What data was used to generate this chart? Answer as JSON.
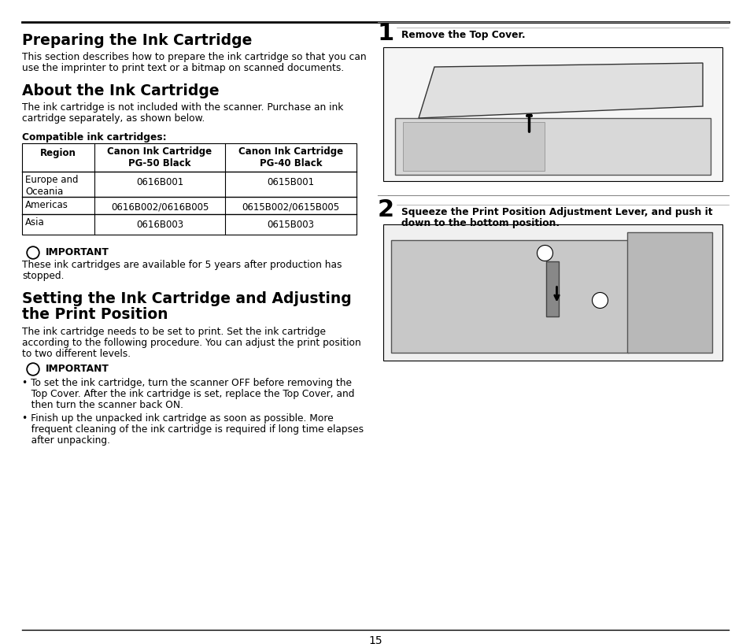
{
  "bg_color": "#ffffff",
  "page_number": "15",
  "title1": "Preparing the Ink Cartridge",
  "body1_l1": "This section describes how to prepare the ink cartridge so that you can",
  "body1_l2": "use the imprinter to print text or a bitmap on scanned documents.",
  "title2": "About the Ink Cartridge",
  "body2_l1": "The ink cartridge is not included with the scanner. Purchase an ink",
  "body2_l2": "cartridge separately, as shown below.",
  "compat_label": "Compatible ink cartridges:",
  "table_header": [
    "Region",
    "Canon Ink Cartridge\nPG-50 Black",
    "Canon Ink Cartridge\nPG-40 Black"
  ],
  "table_rows": [
    [
      "Europe and\nOceania",
      "0616B001",
      "0615B001"
    ],
    [
      "Americas",
      "0616B002/0616B005",
      "0615B002/0615B005"
    ],
    [
      "Asia",
      "0616B003",
      "0615B003"
    ]
  ],
  "important_label": "IMPORTANT",
  "imp1_l1": "These ink cartridges are available for 5 years after production has",
  "imp1_l2": "stopped.",
  "title3_l1": "Setting the Ink Cartridge and Adjusting",
  "title3_l2": "the Print Position",
  "body3_l1": "The ink cartridge needs to be set to print. Set the ink cartridge",
  "body3_l2": "according to the following procedure. You can adjust the print position",
  "body3_l3": "to two different levels.",
  "imp2_b1_l1": "• To set the ink cartridge, turn the scanner OFF before removing the",
  "imp2_b1_l2": "   Top Cover. After the ink cartridge is set, replace the Top Cover, and",
  "imp2_b1_l3": "   then turn the scanner back ON.",
  "imp2_b2_l1": "• Finish up the unpacked ink cartridge as soon as possible. More",
  "imp2_b2_l2": "   frequent cleaning of the ink cartridge is required if long time elapses",
  "imp2_b2_l3": "   after unpacking.",
  "step1_num": "1",
  "step1_text": "Remove the Top Cover.",
  "step2_num": "2",
  "step2_l1": "Squeeze the Print Position Adjustment Lever, and push it",
  "step2_l2": "down to the bottom position.",
  "title_fs": 13.5,
  "body_fs": 8.8,
  "imp_fs": 8.8,
  "table_fs": 8.5,
  "step_num_fs": 22,
  "step_text_fs": 8.8
}
